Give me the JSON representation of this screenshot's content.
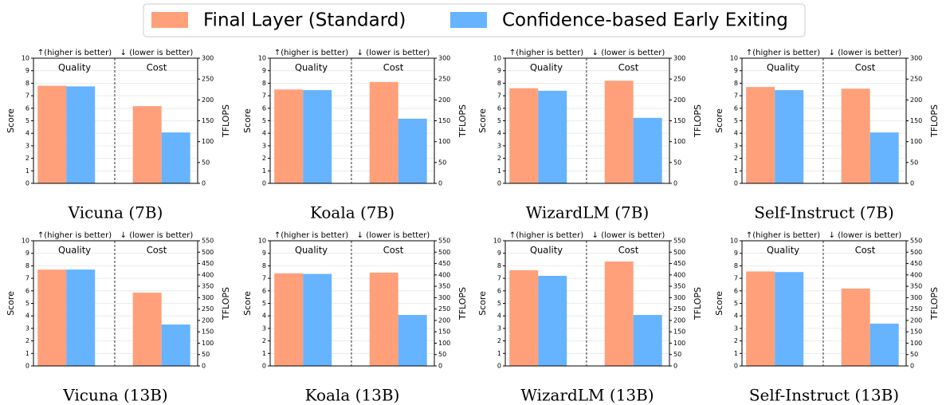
{
  "legend": [
    {
      "name": "Final Layer (Standard)",
      "color": "#ffa07a"
    },
    {
      "name": "Confidence-based Early Exiting",
      "color": "#66b3ff"
    }
  ],
  "chart_data": [
    {
      "type": "bar",
      "title": "Vicuna (7B)",
      "categories": [
        "Quality",
        "Cost"
      ],
      "quality_note": "↑(higher is better)",
      "cost_note": "↓ (lower is better)",
      "ylabel": "Score",
      "y2label": "TFLOPS",
      "quality": [
        7.8,
        7.75
      ],
      "cost": [
        185,
        122
      ],
      "ylim": [
        0,
        10
      ],
      "yticks": [
        0,
        1,
        2,
        3,
        4,
        5,
        6,
        7,
        8,
        9,
        10
      ],
      "y2lim": [
        0,
        300
      ],
      "y2ticks": [
        0,
        50,
        100,
        150,
        200,
        250,
        300
      ],
      "grid": true
    },
    {
      "type": "bar",
      "title": "Koala (7B)",
      "categories": [
        "Quality",
        "Cost"
      ],
      "quality_note": "↑(higher is better)",
      "cost_note": "↓ (lower is better)",
      "ylabel": "Score",
      "y2label": "TFLOPS",
      "quality": [
        7.5,
        7.45
      ],
      "cost": [
        243,
        155
      ],
      "ylim": [
        0,
        10
      ],
      "yticks": [
        0,
        1,
        2,
        3,
        4,
        5,
        6,
        7,
        8,
        9,
        10
      ],
      "y2lim": [
        0,
        300
      ],
      "y2ticks": [
        0,
        50,
        100,
        150,
        200,
        250,
        300
      ],
      "grid": true
    },
    {
      "type": "bar",
      "title": "WizardLM (7B)",
      "categories": [
        "Quality",
        "Cost"
      ],
      "quality_note": "↑(higher is better)",
      "cost_note": "↓ (lower is better)",
      "ylabel": "Score",
      "y2label": "TFLOPS",
      "quality": [
        7.6,
        7.4
      ],
      "cost": [
        246,
        157
      ],
      "ylim": [
        0,
        10
      ],
      "yticks": [
        0,
        1,
        2,
        3,
        4,
        5,
        6,
        7,
        8,
        9,
        10
      ],
      "y2lim": [
        0,
        300
      ],
      "y2ticks": [
        0,
        50,
        100,
        150,
        200,
        250,
        300
      ],
      "grid": true
    },
    {
      "type": "bar",
      "title": "Self-Instruct (7B)",
      "categories": [
        "Quality",
        "Cost"
      ],
      "quality_note": "↑(higher is better)",
      "cost_note": "↓ (lower is better)",
      "ylabel": "Score",
      "y2label": "TFLOPS",
      "quality": [
        7.7,
        7.45
      ],
      "cost": [
        227,
        122
      ],
      "ylim": [
        0,
        10
      ],
      "yticks": [
        0,
        1,
        2,
        3,
        4,
        5,
        6,
        7,
        8,
        9,
        10
      ],
      "y2lim": [
        0,
        300
      ],
      "y2ticks": [
        0,
        50,
        100,
        150,
        200,
        250,
        300
      ],
      "grid": true
    },
    {
      "type": "bar",
      "title": "Vicuna (13B)",
      "categories": [
        "Quality",
        "Cost"
      ],
      "quality_note": "↑(higher is better)",
      "cost_note": "↓ (lower is better)",
      "ylabel": "Score",
      "y2label": "TFLOPS",
      "quality": [
        7.7,
        7.7
      ],
      "cost": [
        322,
        182
      ],
      "ylim": [
        0,
        10
      ],
      "yticks": [
        0,
        1,
        2,
        3,
        4,
        5,
        6,
        7,
        8,
        9,
        10
      ],
      "y2lim": [
        0,
        550
      ],
      "y2ticks": [
        0,
        50,
        100,
        150,
        200,
        250,
        300,
        350,
        400,
        450,
        500,
        550
      ],
      "grid": true
    },
    {
      "type": "bar",
      "title": "Koala (13B)",
      "categories": [
        "Quality",
        "Cost"
      ],
      "quality_note": "↑(higher is better)",
      "cost_note": "↓ (lower is better)",
      "ylabel": "Score",
      "y2label": "TFLOPS",
      "quality": [
        7.4,
        7.35
      ],
      "cost": [
        410,
        224
      ],
      "ylim": [
        0,
        10
      ],
      "yticks": [
        0,
        1,
        2,
        3,
        4,
        5,
        6,
        7,
        8,
        9,
        10
      ],
      "y2lim": [
        0,
        550
      ],
      "y2ticks": [
        0,
        50,
        100,
        150,
        200,
        250,
        300,
        350,
        400,
        450,
        500,
        550
      ],
      "grid": true
    },
    {
      "type": "bar",
      "title": "WizardLM (13B)",
      "categories": [
        "Quality",
        "Cost"
      ],
      "quality_note": "↑(higher is better)",
      "cost_note": "↓ (lower is better)",
      "ylabel": "Score",
      "y2label": "TFLOPS",
      "quality": [
        7.65,
        7.2
      ],
      "cost": [
        459,
        224
      ],
      "ylim": [
        0,
        10
      ],
      "yticks": [
        0,
        1,
        2,
        3,
        4,
        5,
        6,
        7,
        8,
        9,
        10
      ],
      "y2lim": [
        0,
        550
      ],
      "y2ticks": [
        0,
        50,
        100,
        150,
        200,
        250,
        300,
        350,
        400,
        450,
        500,
        550
      ],
      "grid": true
    },
    {
      "type": "bar",
      "title": "Self-Instruct (13B)",
      "categories": [
        "Quality",
        "Cost"
      ],
      "quality_note": "↑(higher is better)",
      "cost_note": "↓ (lower is better)",
      "ylabel": "Score",
      "y2label": "TFLOPS",
      "quality": [
        7.55,
        7.5
      ],
      "cost": [
        340,
        186
      ],
      "ylim": [
        0,
        10
      ],
      "yticks": [
        0,
        1,
        2,
        3,
        4,
        5,
        6,
        7,
        8,
        9,
        10
      ],
      "y2lim": [
        0,
        550
      ],
      "y2ticks": [
        0,
        50,
        100,
        150,
        200,
        250,
        300,
        350,
        400,
        450,
        500,
        550
      ],
      "grid": true
    }
  ]
}
